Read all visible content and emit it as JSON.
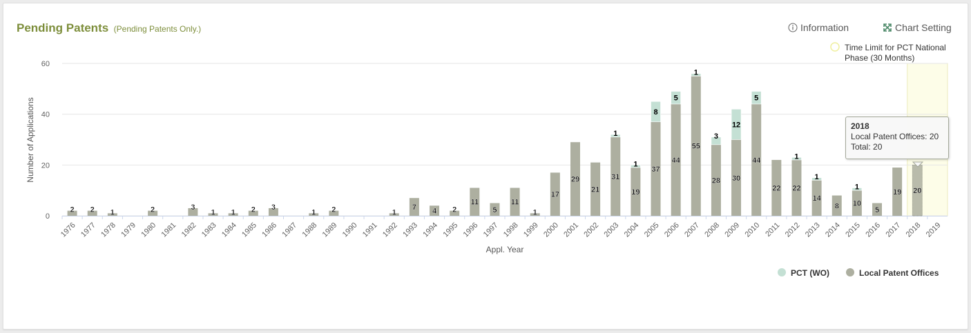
{
  "header": {
    "title": "Pending Patents",
    "subtitle": "(Pending Patents Only.)",
    "info_label": "Information",
    "setting_label": "Chart Setting"
  },
  "time_limit_label": [
    "Time Limit for PCT National",
    "Phase (30 Months)"
  ],
  "tooltip": {
    "title": "2018",
    "line1": "Local Patent Offices: 20",
    "line2": "Total: 20"
  },
  "colors": {
    "local": "#adafa0",
    "pct": "#c4e0d4",
    "title": "#7d8e3b",
    "band": "#fdfde8",
    "band_border": "#ecebbd"
  },
  "chart_data": {
    "type": "bar",
    "stacked": true,
    "xlabel": "Appl. Year",
    "ylabel": "Number of Applications",
    "ylim": [
      0,
      60
    ],
    "yticks": [
      0,
      20,
      40,
      60
    ],
    "categories": [
      "1976",
      "1977",
      "1978",
      "1979",
      "1980",
      "1981",
      "1982",
      "1983",
      "1984",
      "1985",
      "1986",
      "1987",
      "1988",
      "1989",
      "1990",
      "1991",
      "1992",
      "1993",
      "1994",
      "1995",
      "1996",
      "1997",
      "1998",
      "1999",
      "2000",
      "2001",
      "2002",
      "2003",
      "2004",
      "2005",
      "2006",
      "2007",
      "2008",
      "2009",
      "2010",
      "2011",
      "2012",
      "2013",
      "2014",
      "2015",
      "2016",
      "2017",
      "2018",
      "2019"
    ],
    "series": [
      {
        "name": "Local Patent Offices",
        "values": [
          2,
          2,
          1,
          0,
          2,
          0,
          3,
          1,
          1,
          2,
          3,
          0,
          1,
          2,
          0,
          0,
          1,
          7,
          4,
          2,
          11,
          5,
          11,
          1,
          17,
          29,
          21,
          31,
          19,
          37,
          44,
          55,
          28,
          30,
          44,
          22,
          22,
          14,
          8,
          10,
          5,
          19,
          20,
          0
        ]
      },
      {
        "name": "PCT (WO)",
        "values": [
          0,
          0,
          0,
          0,
          0,
          0,
          0,
          0,
          0,
          0,
          0,
          0,
          0,
          0,
          0,
          0,
          0,
          0,
          0,
          0,
          0,
          0,
          0,
          0,
          0,
          0,
          0,
          1,
          1,
          8,
          5,
          1,
          3,
          12,
          5,
          0,
          1,
          1,
          0,
          1,
          0,
          0,
          0,
          0
        ]
      }
    ],
    "legend": {
      "position": "bottom-right",
      "entries": [
        "PCT (WO)",
        "Local Patent Offices"
      ]
    },
    "highlight_band": {
      "category": "2018",
      "label": "Time Limit for PCT National Phase (30 Months)"
    },
    "grid": true
  }
}
